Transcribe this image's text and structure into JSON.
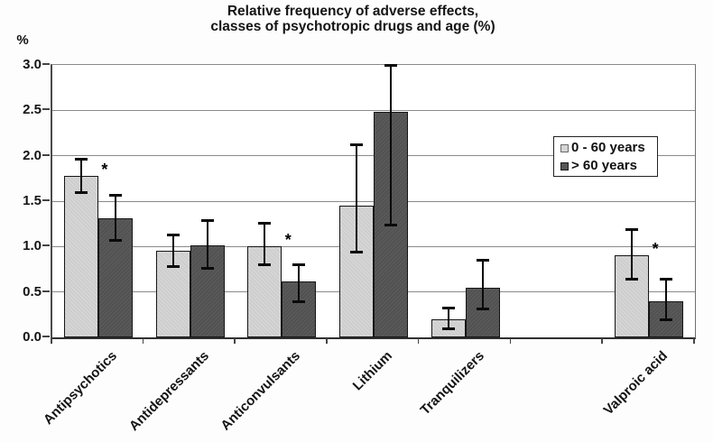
{
  "chart_data": {
    "type": "bar",
    "title": "Relative frequency of adverse effects, classes of psychotropic drugs and age (%)",
    "title_lines": [
      "Relative frequency of adverse effects,",
      "classes of psychotropic drugs and age (%)"
    ],
    "y_axis": {
      "unit_label": "%",
      "min": 0.0,
      "max": 3.0,
      "step": 0.5,
      "tick_labels": [
        "0.0",
        "0.5",
        "1.0",
        "1.5",
        "2.0",
        "2.5",
        "3.0"
      ]
    },
    "grid": "horizontal",
    "categories": [
      "Antipsychotics",
      "Antidepressants",
      "Anticonvulsants",
      "Lithium",
      "Tranquilizers",
      "",
      "Valproic acid"
    ],
    "series": [
      {
        "name": "0 - 60 years",
        "color": "#d5d5d5",
        "values": [
          1.78,
          0.95,
          1.0,
          1.45,
          0.2,
          null,
          0.9
        ],
        "error_low": [
          1.6,
          0.78,
          0.8,
          0.94,
          0.1,
          null,
          0.65
        ],
        "error_high": [
          1.97,
          1.13,
          1.26,
          2.13,
          0.33,
          null,
          1.19
        ]
      },
      {
        "name": "> 60 years",
        "color": "#595959",
        "values": [
          1.31,
          1.01,
          0.62,
          2.48,
          0.55,
          null,
          0.4
        ],
        "error_low": [
          1.07,
          0.76,
          0.4,
          1.24,
          0.32,
          null,
          0.2
        ],
        "error_high": [
          1.57,
          1.29,
          0.8,
          3.0,
          0.85,
          null,
          0.65
        ]
      }
    ],
    "significance": {
      "marker": "*",
      "category_indices": [
        0,
        2,
        6
      ]
    },
    "legend": {
      "position": "inside-right",
      "entries": [
        "0 - 60 years",
        "> 60 years"
      ]
    }
  }
}
